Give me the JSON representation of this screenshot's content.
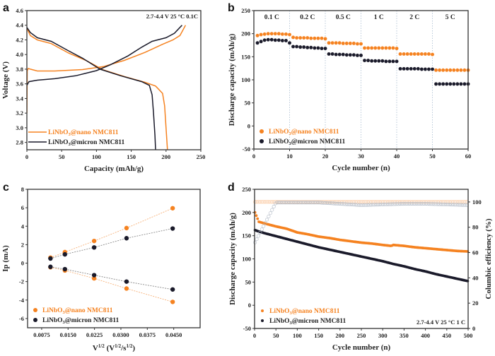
{
  "colors": {
    "nano": "#f58220",
    "micron": "#1a1a2a",
    "axis": "#333333"
  },
  "chart_data": [
    {
      "id": "a",
      "panel_label": "a",
      "type": "line",
      "xlabel": "Capacity (mAh/g)",
      "ylabel": "Voltage (V)",
      "xlim": [
        0,
        250
      ],
      "ylim": [
        2.7,
        4.6
      ],
      "xticks": [
        "0",
        "50",
        "100",
        "150",
        "200",
        "250"
      ],
      "xtick_values": [
        0,
        50,
        100,
        150,
        200,
        250
      ],
      "yticks": [
        "2.8",
        "3.0",
        "3.2",
        "3.4",
        "3.6",
        "3.8",
        "4.0",
        "4.2",
        "4.4",
        "4.6"
      ],
      "ytick_values": [
        2.8,
        3.0,
        3.2,
        3.4,
        3.6,
        3.8,
        4.0,
        4.2,
        4.4,
        4.6
      ],
      "annotation": "2.7-4.4 V 25 °C  0.1C",
      "legend_position": "bottom-left",
      "series": [
        {
          "name": "LiNbO3@nano NMC811",
          "legend_main": "LiNbO",
          "legend_sub": "3",
          "legend_rest": "@nano NMC811",
          "color_key": "nano",
          "curves": [
            {
              "role": "charge",
              "points": [
                [
                  0,
                  3.2
                ],
                [
                  0.5,
                  3.78
                ],
                [
                  2,
                  3.81
                ],
                [
                  5,
                  3.8
                ],
                [
                  15,
                  3.775
                ],
                [
                  40,
                  3.775
                ],
                [
                  80,
                  3.795
                ],
                [
                  110,
                  3.835
                ],
                [
                  140,
                  3.92
                ],
                [
                  170,
                  4.03
                ],
                [
                  195,
                  4.14
                ],
                [
                  210,
                  4.2
                ],
                [
                  220,
                  4.26
                ],
                [
                  228,
                  4.4
                ]
              ]
            },
            {
              "role": "discharge",
              "points": [
                [
                  0,
                  4.36
                ],
                [
                  5,
                  4.26
                ],
                [
                  15,
                  4.2
                ],
                [
                  35,
                  4.15
                ],
                [
                  60,
                  4.02
                ],
                [
                  85,
                  3.92
                ],
                [
                  110,
                  3.79
                ],
                [
                  140,
                  3.7
                ],
                [
                  170,
                  3.62
                ],
                [
                  185,
                  3.57
                ],
                [
                  195,
                  3.47
                ],
                [
                  198,
                  3.3
                ],
                [
                  200,
                  3.0
                ],
                [
                  202,
                  2.7
                ]
              ]
            }
          ]
        },
        {
          "name": "LiNbO3@micron NMC811",
          "legend_main": "LiNbO",
          "legend_sub": "3",
          "legend_rest": "@micron NMC811",
          "color_key": "micron",
          "curves": [
            {
              "role": "charge",
              "points": [
                [
                  0,
                  3.58
                ],
                [
                  3,
                  3.63
                ],
                [
                  15,
                  3.65
                ],
                [
                  40,
                  3.67
                ],
                [
                  70,
                  3.71
                ],
                [
                  100,
                  3.78
                ],
                [
                  120,
                  3.86
                ],
                [
                  145,
                  3.98
                ],
                [
                  165,
                  4.1
                ],
                [
                  180,
                  4.18
                ],
                [
                  200,
                  4.23
                ],
                [
                  212,
                  4.29
                ],
                [
                  223,
                  4.4
                ]
              ]
            },
            {
              "role": "discharge",
              "points": [
                [
                  0,
                  4.37
                ],
                [
                  5,
                  4.3
                ],
                [
                  15,
                  4.23
                ],
                [
                  35,
                  4.18
                ],
                [
                  60,
                  4.05
                ],
                [
                  80,
                  3.95
                ],
                [
                  105,
                  3.8
                ],
                [
                  135,
                  3.71
                ],
                [
                  165,
                  3.63
                ],
                [
                  176,
                  3.58
                ],
                [
                  180,
                  3.45
                ],
                [
                  182,
                  3.2
                ],
                [
                  184,
                  2.9
                ],
                [
                  185,
                  2.7
                ]
              ]
            }
          ]
        }
      ]
    },
    {
      "id": "b",
      "panel_label": "b",
      "type": "scatter",
      "xlabel": "Cycle number (n)",
      "ylabel": "Discharge capacity (mAh/g)",
      "xlim": [
        0,
        60
      ],
      "ylim": [
        -50,
        250
      ],
      "xticks": [
        "0",
        "10",
        "20",
        "30",
        "40",
        "50",
        "60"
      ],
      "xtick_values": [
        0,
        10,
        20,
        30,
        40,
        50,
        60
      ],
      "yticks": [
        "-50",
        "0",
        "50",
        "100",
        "150",
        "200",
        "250"
      ],
      "ytick_values": [
        -50,
        0,
        50,
        100,
        150,
        200,
        250
      ],
      "rate_labels": [
        "0.1 C",
        "0.2 C",
        "0.5 C",
        "1 C",
        "2 C",
        "5 C"
      ],
      "rate_dividers": [
        10,
        20,
        30,
        40,
        50
      ],
      "legend_position": "bottom-left",
      "series": [
        {
          "name": "LiNbO3@nano NMC811",
          "legend_main": "LiNbO",
          "legend_sub": "3",
          "legend_rest": "@nano NMC811",
          "color_key": "nano",
          "x": [
            1,
            2,
            3,
            4,
            5,
            6,
            7,
            8,
            9,
            10,
            11,
            12,
            13,
            14,
            15,
            16,
            17,
            18,
            19,
            20,
            21,
            22,
            23,
            24,
            25,
            26,
            27,
            28,
            29,
            30,
            31,
            32,
            33,
            34,
            35,
            36,
            37,
            38,
            39,
            40,
            41,
            42,
            43,
            44,
            45,
            46,
            47,
            48,
            49,
            50,
            51,
            52,
            53,
            54,
            55,
            56,
            57,
            58,
            59,
            60
          ],
          "values": [
            196,
            198,
            199,
            200,
            200,
            200,
            200,
            199,
            199,
            198,
            192,
            191,
            191,
            191,
            191,
            190,
            190,
            190,
            190,
            189,
            180,
            180,
            180,
            180,
            179,
            179,
            179,
            179,
            178,
            178,
            169,
            169,
            169,
            169,
            169,
            169,
            169,
            169,
            169,
            168,
            156,
            156,
            156,
            156,
            156,
            156,
            156,
            156,
            156,
            155,
            121,
            121,
            121,
            121,
            121,
            121,
            121,
            121,
            121,
            121
          ]
        },
        {
          "name": "LiNbO3@micron NMC811",
          "legend_main": "LiNbO",
          "legend_sub": "3",
          "legend_rest": "@micron NMC811",
          "color_key": "micron",
          "x": [
            1,
            2,
            3,
            4,
            5,
            6,
            7,
            8,
            9,
            10,
            11,
            12,
            13,
            14,
            15,
            16,
            17,
            18,
            19,
            20,
            21,
            22,
            23,
            24,
            25,
            26,
            27,
            28,
            29,
            30,
            31,
            32,
            33,
            34,
            35,
            36,
            37,
            38,
            39,
            40,
            41,
            42,
            43,
            44,
            45,
            46,
            47,
            48,
            49,
            50,
            51,
            52,
            53,
            54,
            55,
            56,
            57,
            58,
            59,
            60
          ],
          "values": [
            180,
            183,
            186,
            187,
            187,
            186,
            186,
            185,
            185,
            180,
            172,
            172,
            171,
            171,
            170,
            170,
            169,
            169,
            168,
            168,
            156,
            156,
            155,
            155,
            155,
            154,
            154,
            154,
            153,
            153,
            142,
            142,
            141,
            141,
            141,
            141,
            140,
            140,
            140,
            140,
            124,
            124,
            124,
            124,
            124,
            124,
            123,
            123,
            123,
            123,
            91,
            91,
            91,
            91,
            91,
            91,
            91,
            91,
            91,
            91
          ]
        }
      ]
    },
    {
      "id": "c",
      "panel_label": "c",
      "type": "scatter",
      "xlabel_main": "V",
      "xlabel_sup1": "1/2",
      "xlabel_mid": " (V",
      "xlabel_sup2": "1/2",
      "xlabel_mid2": "/s",
      "xlabel_sup3": "1/2",
      "xlabel_end": ")",
      "ylabel": "Ip (mA)",
      "xlim": [
        0.0035,
        0.0525
      ],
      "ylim": [
        -7,
        8
      ],
      "xticks": [
        "0.0075",
        "0.0150",
        "0.0225",
        "0.0300",
        "0.0375",
        "0.0450"
      ],
      "xtick_values": [
        0.0075,
        0.015,
        0.0225,
        0.03,
        0.0375,
        0.045
      ],
      "yticks": [
        "-6",
        "-4",
        "-2",
        "0",
        "2",
        "4",
        "6",
        "8"
      ],
      "ytick_values": [
        -6,
        -4,
        -2,
        0,
        2,
        4,
        6,
        8
      ],
      "legend_position": "bottom-left",
      "series": [
        {
          "name": "LiNbO3@nano NMC811 (anodic)",
          "legend_main": "LiNbO",
          "legend_sub": "3",
          "legend_rest": "@nano NMC811",
          "color_key": "nano",
          "in_legend": true,
          "x": [
            0.01,
            0.0141,
            0.0224,
            0.0316,
            0.0447
          ],
          "values": [
            0.6,
            1.2,
            2.4,
            3.8,
            5.95
          ]
        },
        {
          "name": "LiNbO3@micron NMC811 (anodic)",
          "legend_main": "LiNbO",
          "legend_sub": "3",
          "legend_rest": "@micron NMC811",
          "color_key": "micron",
          "in_legend": true,
          "x": [
            0.01,
            0.0141,
            0.0224,
            0.0316,
            0.0447
          ],
          "values": [
            0.5,
            0.95,
            1.7,
            2.7,
            3.75
          ]
        },
        {
          "name": "LiNbO3@nano NMC811 (cathodic)",
          "color_key": "nano",
          "in_legend": false,
          "x": [
            0.01,
            0.0141,
            0.0224,
            0.0316,
            0.0447
          ],
          "values": [
            -0.45,
            -0.8,
            -1.65,
            -2.75,
            -4.2
          ]
        },
        {
          "name": "LiNbO3@micron NMC811 (cathodic)",
          "color_key": "micron",
          "in_legend": false,
          "x": [
            0.01,
            0.0141,
            0.0224,
            0.0316,
            0.0447
          ],
          "values": [
            -0.4,
            -0.65,
            -1.3,
            -2.0,
            -2.85
          ]
        }
      ]
    },
    {
      "id": "d",
      "panel_label": "d",
      "type": "scatter",
      "xlabel": "Cycle number (n)",
      "ylabel": "Discharge capacity (mAh/g)",
      "y2label": "Columbic efficiency (%)",
      "xlim": [
        0,
        500
      ],
      "ylim": [
        -50,
        250
      ],
      "y2lim": [
        0,
        110
      ],
      "xticks": [
        "0",
        "50",
        "100",
        "150",
        "200",
        "250",
        "300",
        "350",
        "400",
        "450",
        "500"
      ],
      "xtick_values": [
        0,
        50,
        100,
        150,
        200,
        250,
        300,
        350,
        400,
        450,
        500
      ],
      "yticks": [
        "-50",
        "0",
        "50",
        "100",
        "150",
        "200",
        "250"
      ],
      "ytick_values": [
        -50,
        0,
        50,
        100,
        150,
        200,
        250
      ],
      "y2ticks": [
        "0",
        "20",
        "40",
        "60",
        "80",
        "100"
      ],
      "y2tick_values": [
        0,
        20,
        40,
        60,
        80,
        100
      ],
      "annotation": "2.7-4.4 V 25 °C  1 C",
      "legend_position": "bottom-left",
      "series": [
        {
          "name": "LiNbO3@nano NMC811",
          "legend_main": "LiNbO",
          "legend_sub": "3",
          "legend_rest": "@nano NMC811",
          "color_key": "nano",
          "x": [
            1,
            10,
            25,
            50,
            75,
            100,
            125,
            150,
            175,
            200,
            225,
            250,
            275,
            300,
            320,
            325,
            350,
            375,
            400,
            425,
            450,
            475,
            500
          ],
          "values": [
            200,
            180,
            176,
            170,
            165,
            157,
            153,
            148,
            145,
            141,
            138,
            135,
            133,
            130,
            128,
            130,
            128,
            125,
            123,
            121,
            119,
            117,
            116
          ]
        },
        {
          "name": "LiNbO3@micron NMC811",
          "legend_main": "LiNbO",
          "legend_sub": "3",
          "legend_rest": "@micron NMC811",
          "color_key": "micron",
          "x": [
            1,
            10,
            25,
            50,
            75,
            100,
            125,
            150,
            175,
            200,
            225,
            250,
            275,
            300,
            325,
            350,
            375,
            400,
            425,
            450,
            475,
            500
          ],
          "values": [
            162,
            159,
            155,
            149,
            143,
            137,
            131,
            125,
            120,
            115,
            110,
            105,
            100,
            95,
            89,
            84,
            78,
            73,
            67,
            62,
            57,
            52
          ]
        },
        {
          "name": "CE nano",
          "color_key": "nano",
          "axis": "y2",
          "hollow": true,
          "x": [
            1,
            50,
            100,
            150,
            200,
            250,
            300,
            350,
            400,
            450,
            500
          ],
          "values": [
            100,
            100,
            100,
            100,
            100,
            100,
            100,
            100,
            100,
            100,
            100
          ]
        },
        {
          "name": "CE micron",
          "color_key": "micron",
          "axis": "y2",
          "hollow": true,
          "x": [
            1,
            50,
            100,
            150,
            200,
            250,
            300,
            350,
            400,
            450,
            500
          ],
          "values": [
            68,
            99.5,
            99.5,
            99.5,
            98.5,
            97.5,
            98,
            98.5,
            98.5,
            98,
            97.5
          ]
        }
      ]
    }
  ]
}
